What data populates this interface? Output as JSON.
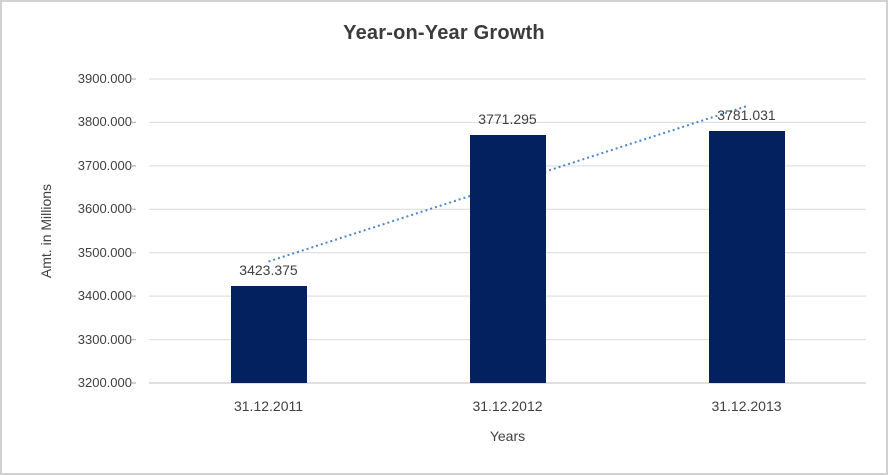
{
  "chart_data": {
    "type": "bar",
    "title": "Year-on-Year Growth",
    "xlabel": "Years",
    "ylabel": "Amt. in Millions",
    "categories": [
      "31.12.2011",
      "31.12.2012",
      "31.12.2013"
    ],
    "values": [
      3423.375,
      3771.295,
      3781.031
    ],
    "data_labels": [
      "3423.375",
      "3771.295",
      "3781.031"
    ],
    "ytick_labels": [
      "3200.000",
      "3300.000",
      "3400.000",
      "3500.000",
      "3600.000",
      "3700.000",
      "3800.000",
      "3900.000"
    ],
    "ylim": [
      3200,
      3900
    ],
    "ytick_step": 100,
    "grid": true,
    "legend": "none",
    "trendline": "linear-dotted",
    "colors": {
      "bar": "#02215E",
      "trendline": "#4E86C8",
      "gridline": "#D9D9D9",
      "axis_line": "#BFBFBF",
      "tick_mark": "#BFBFBF",
      "text": "#404040",
      "title": "#3B3B3B",
      "frame": "#D2D2D2"
    }
  }
}
